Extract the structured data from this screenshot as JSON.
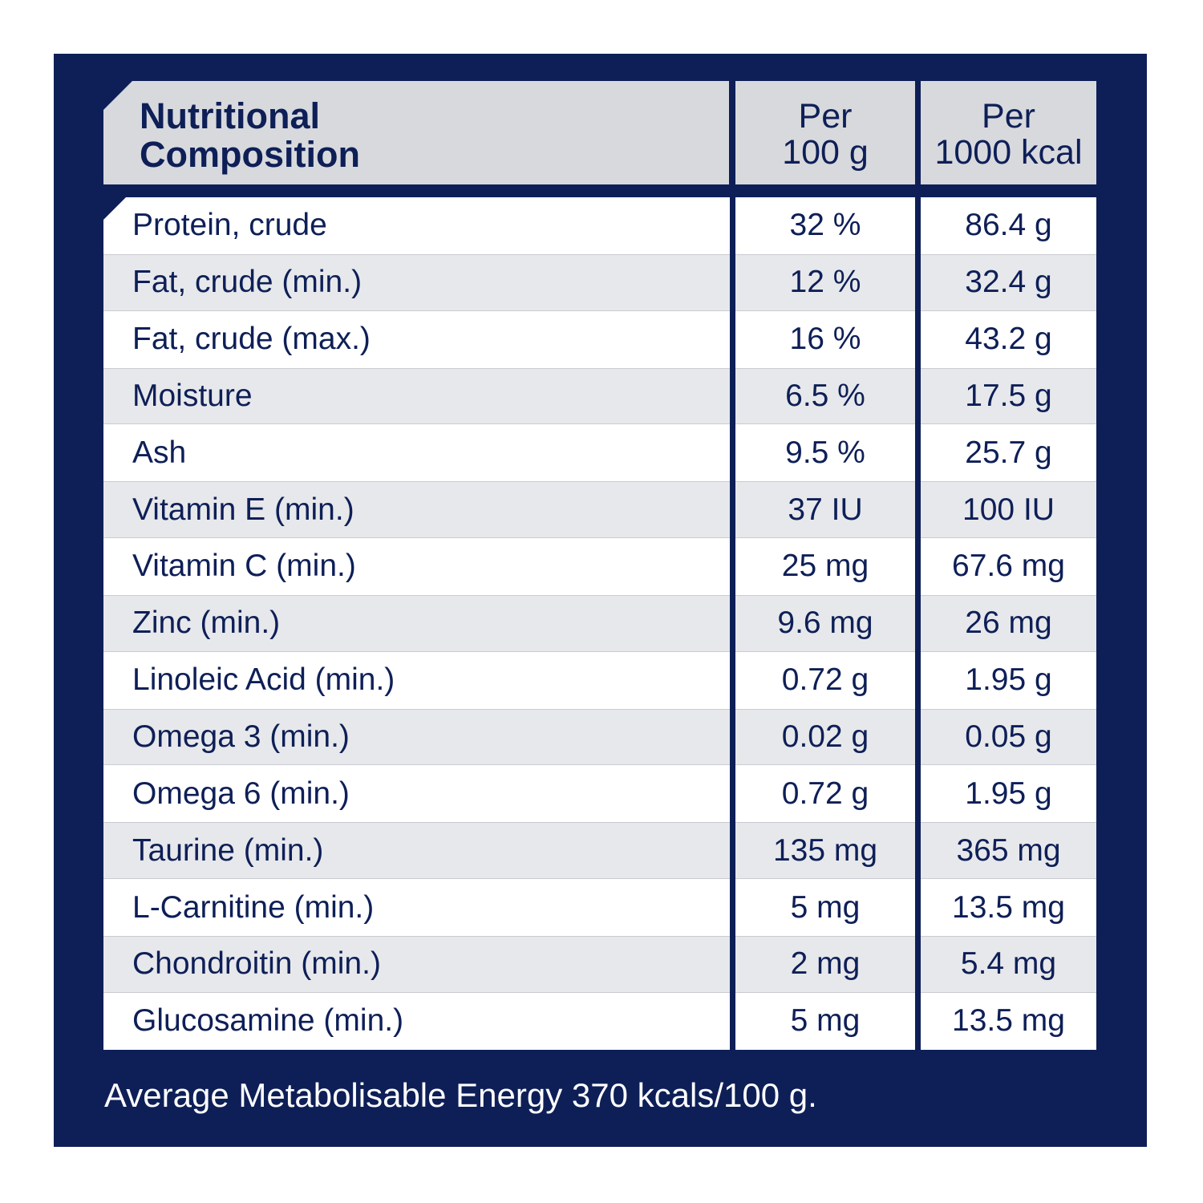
{
  "header": {
    "label_line1": "Nutritional",
    "label_line2": "Composition",
    "col1_line1": "Per",
    "col1_line2": "100 g",
    "col2_line1": "Per",
    "col2_line2": "1000 kcal"
  },
  "rows": [
    {
      "name": "Protein, crude",
      "per100g": "32 %",
      "per1000kcal": "86.4 g"
    },
    {
      "name": "Fat, crude (min.)",
      "per100g": "12 %",
      "per1000kcal": "32.4 g"
    },
    {
      "name": "Fat, crude (max.)",
      "per100g": "16 %",
      "per1000kcal": "43.2 g"
    },
    {
      "name": "Moisture",
      "per100g": "6.5 %",
      "per1000kcal": "17.5 g"
    },
    {
      "name": "Ash",
      "per100g": "9.5 %",
      "per1000kcal": "25.7 g"
    },
    {
      "name": "Vitamin E (min.)",
      "per100g": "37 IU",
      "per1000kcal": "100 IU"
    },
    {
      "name": "Vitamin C (min.)",
      "per100g": "25 mg",
      "per1000kcal": "67.6 mg"
    },
    {
      "name": "Zinc (min.)",
      "per100g": "9.6 mg",
      "per1000kcal": "26 mg"
    },
    {
      "name": "Linoleic Acid (min.)",
      "per100g": "0.72 g",
      "per1000kcal": "1.95 g"
    },
    {
      "name": "Omega 3 (min.)",
      "per100g": "0.02 g",
      "per1000kcal": "0.05 g"
    },
    {
      "name": "Omega 6 (min.)",
      "per100g": "0.72 g",
      "per1000kcal": "1.95 g"
    },
    {
      "name": "Taurine (min.)",
      "per100g": "135 mg",
      "per1000kcal": "365 mg"
    },
    {
      "name": "L-Carnitine (min.)",
      "per100g": "5 mg",
      "per1000kcal": "13.5 mg"
    },
    {
      "name": "Chondroitin (min.)",
      "per100g": "2 mg",
      "per1000kcal": "5.4 mg"
    },
    {
      "name": "Glucosamine (min.)",
      "per100g": "5 mg",
      "per1000kcal": "13.5 mg"
    }
  ],
  "footer": "Average Metabolisable Energy 370 kcals/100 g.",
  "colors": {
    "panel": "#0e1f57",
    "header_bg": "#d8d9dd",
    "row_alt": "#e7e8eb",
    "text": "#0e1f57"
  }
}
